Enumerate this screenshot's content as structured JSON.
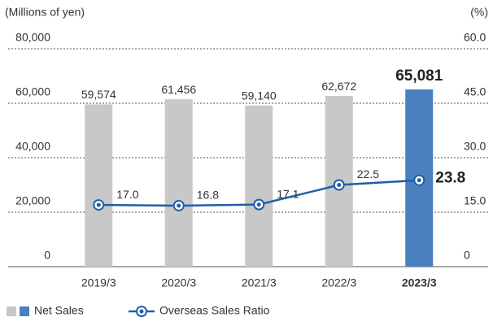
{
  "chart_data": {
    "type": "combo",
    "y_axis_label": "(Millions of yen)",
    "y2_axis_label": "(%)",
    "categories": [
      "2019/3",
      "2020/3",
      "2021/3",
      "2022/3",
      "2023/3"
    ],
    "series": [
      {
        "name": "Net Sales",
        "type": "bar",
        "colors": [
          "#c8c8c8",
          "#c8c8c8",
          "#c8c8c8",
          "#c8c8c8",
          "#4a80c0"
        ],
        "values": [
          59574,
          61456,
          59140,
          62672,
          65081
        ],
        "value_labels": [
          "59,574",
          "61,456",
          "59,140",
          "62,672",
          "65,081"
        ]
      },
      {
        "name": "Overseas Sales Ratio",
        "type": "line",
        "axis": "y2",
        "color": "#1f5fa8",
        "values": [
          17.0,
          16.8,
          17.1,
          22.5,
          23.8
        ],
        "value_labels": [
          "17.0",
          "16.8",
          "17.1",
          "22.5",
          "23.8"
        ]
      }
    ],
    "ylim": [
      0,
      80000
    ],
    "yticks": [
      0,
      {
        "value": 20000,
        "label": "20,000"
      },
      {
        "value": 40000,
        "label": "40,000"
      },
      {
        "value": 60000,
        "label": "60,000"
      },
      {
        "value": 80000,
        "label": "80,000"
      }
    ],
    "y2lim": [
      0,
      60
    ],
    "y2ticks": [
      0,
      {
        "value": 15,
        "label": "15.0"
      },
      {
        "value": 30,
        "label": "30.0"
      },
      {
        "value": 45,
        "label": "45.0"
      },
      {
        "value": 60,
        "label": "60.0"
      }
    ],
    "grid": true
  }
}
